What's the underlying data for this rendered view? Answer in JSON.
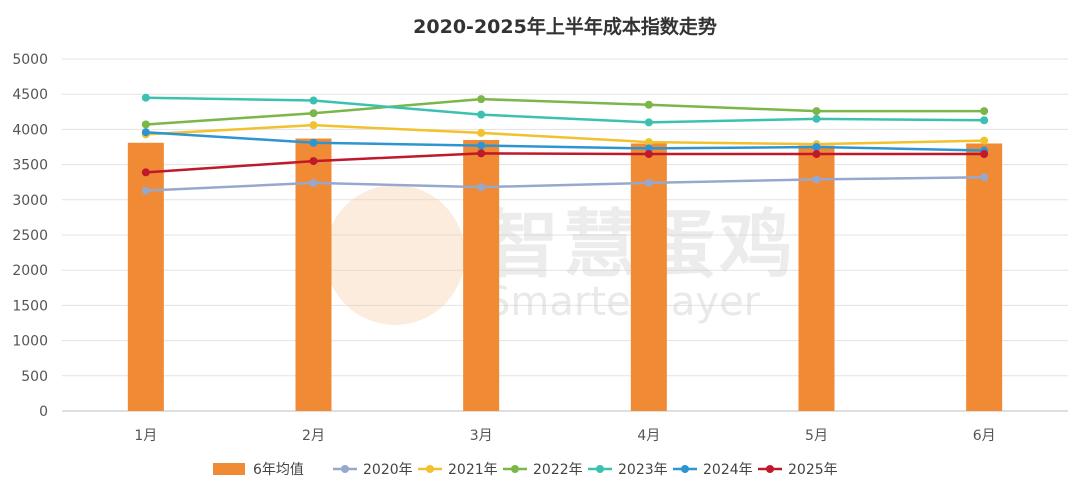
{
  "chart_data": {
    "type": "bar+line",
    "title": "2020-2025年上半年成本指数走势",
    "xlabel": "",
    "ylabel": "",
    "categories": [
      "1月",
      "2月",
      "3月",
      "4月",
      "5月",
      "6月"
    ],
    "ylim": [
      0,
      5000
    ],
    "yticks": [
      0,
      500,
      1000,
      1500,
      2000,
      2500,
      3000,
      3500,
      4000,
      4500,
      5000
    ],
    "grid": true,
    "legend_position": "bottom",
    "series": [
      {
        "name": "6年均值",
        "kind": "bar",
        "color": "#f08a34",
        "values": [
          3810,
          3870,
          3850,
          3800,
          3770,
          3800
        ]
      },
      {
        "name": "2020年",
        "kind": "line",
        "color": "#98a8cc",
        "values": [
          3130,
          3240,
          3180,
          3240,
          3290,
          3320
        ]
      },
      {
        "name": "2021年",
        "kind": "line",
        "color": "#f2c12e",
        "values": [
          3930,
          4060,
          3950,
          3820,
          3790,
          3840
        ]
      },
      {
        "name": "2022年",
        "kind": "line",
        "color": "#7ab648",
        "values": [
          4070,
          4230,
          4430,
          4350,
          4260,
          4260
        ]
      },
      {
        "name": "2023年",
        "kind": "line",
        "color": "#3cc1b0",
        "values": [
          4450,
          4410,
          4210,
          4100,
          4150,
          4130
        ]
      },
      {
        "name": "2024年",
        "kind": "line",
        "color": "#2e95d3",
        "values": [
          3960,
          3810,
          3770,
          3730,
          3750,
          3700
        ]
      },
      {
        "name": "2025年",
        "kind": "line",
        "color": "#c0192c",
        "values": [
          3390,
          3550,
          3660,
          3650,
          3650,
          3650
        ]
      }
    ]
  },
  "watermark": {
    "cn": "智慧蛋鸡",
    "en": "Smarter layer"
  }
}
